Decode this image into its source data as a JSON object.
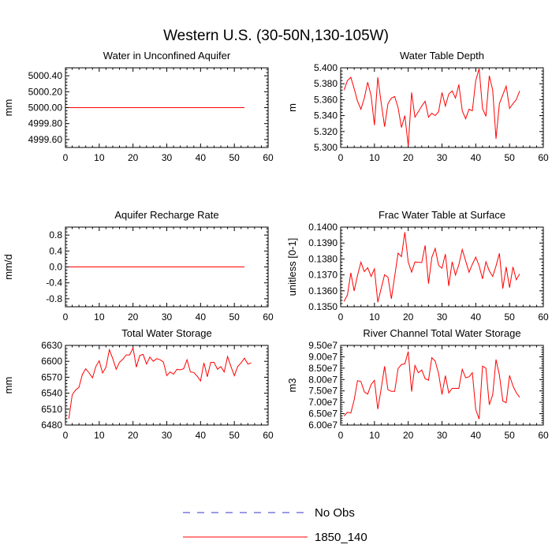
{
  "figure": {
    "title": "Western U.S. (30-50N,130-105W)"
  },
  "legend": {
    "placement": "bottom-center",
    "entries": [
      {
        "label": "No Obs",
        "color": "#3333cc",
        "style": "dashed"
      },
      {
        "label": "1850_140",
        "color": "#ff0000",
        "style": "solid"
      }
    ]
  },
  "chart_data": [
    {
      "type": "line",
      "title": "Water in Unconfined Aquifer",
      "ylabel": "mm",
      "xlim": [
        0,
        60
      ],
      "ylim": [
        4999.5,
        5000.5
      ],
      "xticks": [
        0,
        10,
        20,
        30,
        40,
        50,
        60
      ],
      "xtick_labels": [
        "0",
        "10",
        "20",
        "30",
        "40",
        "50",
        "60"
      ],
      "yticks": [
        4999.6,
        4999.8,
        5000.0,
        5000.2,
        5000.4
      ],
      "ytick_labels": [
        "4999.60",
        "4999.80",
        "5000.00",
        "5000.20",
        "5000.40"
      ],
      "series": [
        {
          "name": "1850_140",
          "color": "#ff0000",
          "x_start": 1,
          "x_end": 53,
          "constant": 5000.0
        }
      ]
    },
    {
      "type": "line",
      "title": "Water Table Depth",
      "ylabel": "m",
      "xlim": [
        0,
        60
      ],
      "ylim": [
        5.3,
        5.4
      ],
      "xticks": [
        0,
        10,
        20,
        30,
        40,
        50,
        60
      ],
      "xtick_labels": [
        "0",
        "10",
        "20",
        "30",
        "40",
        "50",
        "60"
      ],
      "yticks": [
        5.3,
        5.32,
        5.34,
        5.36,
        5.38,
        5.4
      ],
      "ytick_labels": [
        "5.300",
        "5.320",
        "5.340",
        "5.360",
        "5.380",
        "5.400"
      ],
      "series": [
        {
          "name": "1850_140",
          "color": "#ff0000",
          "x_start": 1,
          "values": [
            5.372,
            5.384,
            5.388,
            5.374,
            5.358,
            5.348,
            5.362,
            5.382,
            5.365,
            5.328,
            5.388,
            5.356,
            5.326,
            5.355,
            5.362,
            5.364,
            5.35,
            5.325,
            5.34,
            5.302,
            5.369,
            5.338,
            5.345,
            5.352,
            5.358,
            5.338,
            5.343,
            5.34,
            5.345,
            5.369,
            5.352,
            5.367,
            5.371,
            5.362,
            5.379,
            5.346,
            5.336,
            5.348,
            5.346,
            5.384,
            5.399,
            5.349,
            5.339,
            5.39,
            5.372,
            5.311,
            5.355,
            5.366,
            5.377,
            5.349,
            5.355,
            5.36,
            5.371
          ]
        }
      ]
    },
    {
      "type": "line",
      "title": "Aquifer Recharge Rate",
      "ylabel": "mm/d",
      "xlim": [
        0,
        60
      ],
      "ylim": [
        -1.0,
        1.0
      ],
      "xticks": [
        0,
        10,
        20,
        30,
        40,
        50,
        60
      ],
      "xtick_labels": [
        "0",
        "10",
        "20",
        "30",
        "40",
        "50",
        "60"
      ],
      "yticks": [
        -0.8,
        -0.4,
        0.0,
        0.4,
        0.8
      ],
      "ytick_labels": [
        "-0.8",
        "-0.4",
        "0.0",
        "0.4",
        "0.8"
      ],
      "series": [
        {
          "name": "1850_140",
          "color": "#ff0000",
          "x_start": 1,
          "x_end": 53,
          "constant": 0.0
        }
      ]
    },
    {
      "type": "line",
      "title": "Frac Water Table at Surface",
      "ylabel": "unitless [0-1]",
      "xlim": [
        0,
        60
      ],
      "ylim": [
        0.135,
        0.14
      ],
      "xticks": [
        0,
        10,
        20,
        30,
        40,
        50,
        60
      ],
      "xtick_labels": [
        "0",
        "10",
        "20",
        "30",
        "40",
        "50",
        "60"
      ],
      "yticks": [
        0.135,
        0.136,
        0.137,
        0.138,
        0.139,
        0.14
      ],
      "ytick_labels": [
        "0.1350",
        "0.1360",
        "0.1370",
        "0.1380",
        "0.1390",
        "0.1400"
      ],
      "series": [
        {
          "name": "1850_140",
          "color": "#ff0000",
          "x_start": 1,
          "values": [
            0.13533,
            0.13575,
            0.13713,
            0.13599,
            0.13697,
            0.1378,
            0.13721,
            0.13745,
            0.1369,
            0.13738,
            0.13528,
            0.13615,
            0.13701,
            0.13685,
            0.1355,
            0.1369,
            0.13836,
            0.13815,
            0.13968,
            0.1378,
            0.13717,
            0.13781,
            0.13779,
            0.13777,
            0.13885,
            0.13645,
            0.1381,
            0.13866,
            0.1376,
            0.13742,
            0.1383,
            0.1363,
            0.13782,
            0.13699,
            0.13765,
            0.1386,
            0.13788,
            0.13717,
            0.13767,
            0.13812,
            0.13757,
            0.13675,
            0.13782,
            0.13725,
            0.1369,
            0.13756,
            0.13835,
            0.13614,
            0.1375,
            0.1362,
            0.1375,
            0.1367,
            0.13706
          ]
        }
      ]
    },
    {
      "type": "line",
      "title": "Total Water Storage",
      "ylabel": "mm",
      "xlim": [
        0,
        60
      ],
      "ylim": [
        6480,
        6630
      ],
      "xticks": [
        0,
        10,
        20,
        30,
        40,
        50,
        60
      ],
      "xtick_labels": [
        "0",
        "10",
        "20",
        "30",
        "40",
        "50",
        "60"
      ],
      "yticks": [
        6480,
        6510,
        6540,
        6570,
        6600,
        6630
      ],
      "ytick_labels": [
        "6480",
        "6510",
        "6540",
        "6570",
        "6600",
        "6630"
      ],
      "series": [
        {
          "name": "1850_140",
          "color": "#ff0000",
          "x_start": 1,
          "values": [
            6492,
            6537,
            6546,
            6551,
            6575,
            6586,
            6578,
            6569,
            6590,
            6601,
            6578,
            6589,
            6622,
            6605,
            6585,
            6598,
            6604,
            6612,
            6612,
            6625,
            6589,
            6611,
            6613,
            6595,
            6608,
            6600,
            6605,
            6603,
            6599,
            6573,
            6580,
            6576,
            6585,
            6584,
            6586,
            6603,
            6580,
            6579,
            6572,
            6563,
            6597,
            6571,
            6598,
            6598,
            6585,
            6590,
            6580,
            6609,
            6590,
            6573,
            6590,
            6597,
            6606,
            6595,
            6597
          ]
        }
      ]
    },
    {
      "type": "line",
      "title": "River Channel Total Water Storage",
      "ylabel": "m3",
      "xlim": [
        0,
        60
      ],
      "ylim": [
        60000000,
        95000000
      ],
      "xticks": [
        0,
        10,
        20,
        30,
        40,
        50,
        60
      ],
      "xtick_labels": [
        "0",
        "10",
        "20",
        "30",
        "40",
        "50",
        "60"
      ],
      "yticks": [
        60000000,
        65000000,
        70000000,
        75000000,
        80000000,
        85000000,
        90000000,
        95000000
      ],
      "ytick_labels": [
        "6.00e7",
        "6.50e7",
        "7.00e7",
        "7.50e7",
        "8.00e7",
        "8.50e7",
        "9.00e7",
        "9.50e7"
      ],
      "series": [
        {
          "name": "1850_140",
          "color": "#ff0000",
          "x_start": 1,
          "values": [
            64000000,
            65600000,
            65300000,
            71000000,
            79500000,
            79100000,
            74600000,
            73600000,
            77800000,
            79600000,
            67000000,
            76000000,
            85800000,
            75500000,
            74800000,
            74800000,
            84800000,
            86600000,
            86900000,
            92300000,
            74700000,
            86200000,
            83000000,
            84200000,
            80400000,
            79700000,
            89600000,
            88100000,
            82600000,
            73400000,
            81700000,
            74100000,
            76100000,
            76100000,
            76100000,
            84500000,
            80800000,
            81200000,
            83000000,
            66800000,
            62600000,
            85900000,
            85000000,
            68900000,
            73300000,
            88800000,
            82000000,
            70600000,
            69800000,
            81800000,
            77200000,
            74200000,
            72200000
          ]
        }
      ]
    }
  ]
}
